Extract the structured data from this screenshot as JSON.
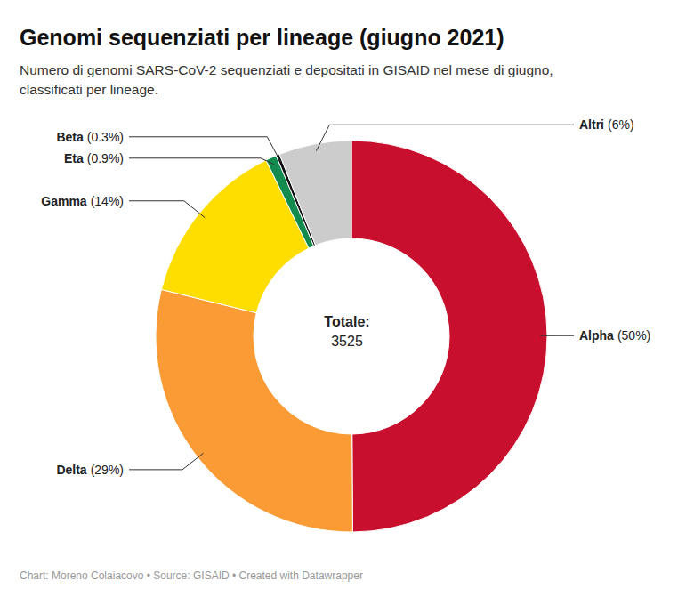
{
  "chart_data": {
    "type": "pie",
    "title": "Genomi sequenziati per lineage (giugno 2021)",
    "subtitle": "Numero di genomi SARS-CoV-2 sequenziati e depositati in GISAID nel mese di giugno, classificati per lineage.",
    "categories": [
      "Alpha",
      "Delta",
      "Gamma",
      "Eta",
      "Beta",
      "Altri"
    ],
    "values": [
      50,
      29,
      14,
      0.9,
      0.3,
      6
    ],
    "value_labels": [
      "(50%)",
      "(29%)",
      "(14%)",
      "(0.9%)",
      "(0.3%)",
      "(6%)"
    ],
    "colors": [
      "#c8102e",
      "#fa9b35",
      "#fedd00",
      "#138a4e",
      "#111111",
      "#cccccc"
    ],
    "data_labels": true,
    "center_title": "Totale:",
    "total": 3525,
    "source": "Chart: Moreno Colaiacovo • Source: GISAID • Created with Datawrapper"
  }
}
